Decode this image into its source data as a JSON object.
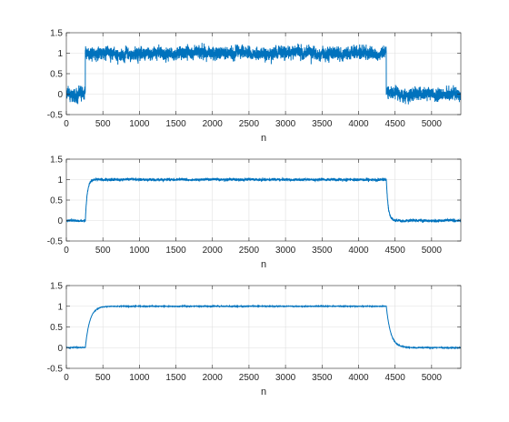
{
  "chart_data": [
    {
      "type": "line",
      "title": "",
      "xlabel": "n",
      "ylabel": "",
      "xlim": [
        0,
        5400
      ],
      "ylim": [
        -0.5,
        1.5
      ],
      "xticks": [
        0,
        500,
        1000,
        1500,
        2000,
        2500,
        3000,
        3500,
        4000,
        4500,
        5000
      ],
      "yticks": [
        -0.5,
        0,
        0.5,
        1,
        1.5
      ],
      "grid": true,
      "color": "#0072bd",
      "series": [
        {
          "description": "noisy rectangular pulse",
          "segments": [
            {
              "x_start": 0,
              "x_end": 260,
              "level": 0.0
            },
            {
              "x_start": 260,
              "x_end": 4380,
              "level": 1.0
            },
            {
              "x_start": 4380,
              "x_end": 5400,
              "level": 0.0
            }
          ],
          "noise_amplitude": 0.13,
          "edge_width": 0,
          "num_points": 5400
        }
      ]
    },
    {
      "type": "line",
      "title": "",
      "xlabel": "n",
      "ylabel": "",
      "xlim": [
        0,
        5400
      ],
      "ylim": [
        -0.5,
        1.5
      ],
      "xticks": [
        0,
        500,
        1000,
        1500,
        2000,
        2500,
        3000,
        3500,
        4000,
        4500,
        5000
      ],
      "yticks": [
        -0.5,
        0,
        0.5,
        1,
        1.5
      ],
      "grid": true,
      "color": "#0072bd",
      "series": [
        {
          "description": "lightly filtered pulse",
          "segments": [
            {
              "x_start": 0,
              "x_end": 260,
              "level": 0.0
            },
            {
              "x_start": 260,
              "x_end": 4380,
              "level": 1.0
            },
            {
              "x_start": 4380,
              "x_end": 5400,
              "level": 0.0
            }
          ],
          "noise_amplitude": 0.025,
          "edge_width": 25,
          "num_points": 5400
        }
      ]
    },
    {
      "type": "line",
      "title": "",
      "xlabel": "n",
      "ylabel": "",
      "xlim": [
        0,
        5400
      ],
      "ylim": [
        -0.5,
        1.5
      ],
      "xticks": [
        0,
        500,
        1000,
        1500,
        2000,
        2500,
        3000,
        3500,
        4000,
        4500,
        5000
      ],
      "yticks": [
        -0.5,
        0,
        0.5,
        1,
        1.5
      ],
      "grid": true,
      "color": "#0072bd",
      "series": [
        {
          "description": "heavily filtered pulse",
          "segments": [
            {
              "x_start": 0,
              "x_end": 260,
              "level": 0.0
            },
            {
              "x_start": 260,
              "x_end": 4380,
              "level": 1.0
            },
            {
              "x_start": 4380,
              "x_end": 5400,
              "level": 0.0
            }
          ],
          "noise_amplitude": 0.008,
          "edge_width": 60,
          "num_points": 2700
        }
      ]
    }
  ]
}
